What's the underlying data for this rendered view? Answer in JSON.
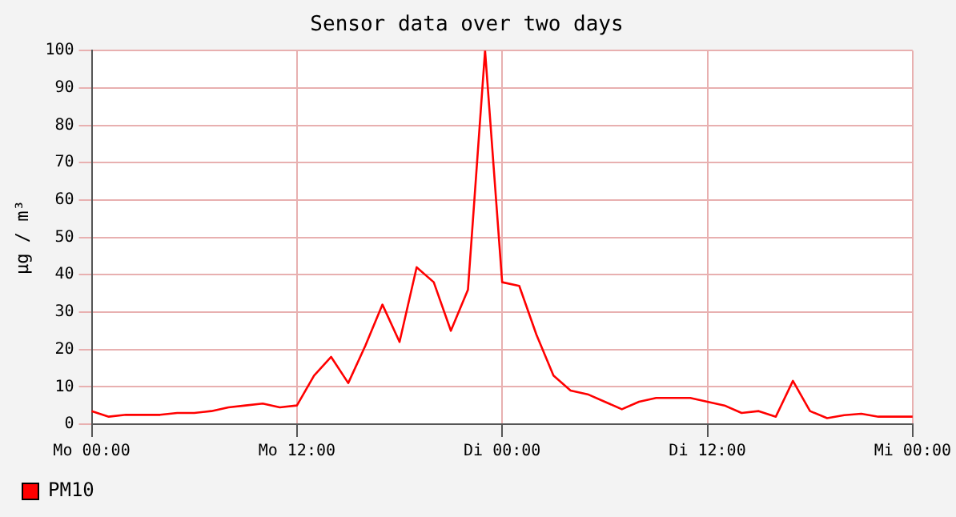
{
  "chart_data": {
    "type": "line",
    "title": "Sensor data over two days",
    "ylabel": "µg / m³",
    "categories": [
      "Mo 00:00",
      null,
      null,
      null,
      null,
      null,
      null,
      null,
      null,
      null,
      null,
      null,
      "Mo 12:00",
      null,
      null,
      null,
      null,
      null,
      null,
      null,
      null,
      null,
      null,
      null,
      "Di 00:00",
      null,
      null,
      null,
      null,
      null,
      null,
      null,
      null,
      null,
      null,
      null,
      "Di 12:00",
      null,
      null,
      null,
      null,
      null,
      null,
      null,
      null,
      null,
      null,
      null,
      "Mi 00:00"
    ],
    "series": [
      {
        "name": "PM10",
        "color": "#ff0000",
        "values": [
          3.5,
          2,
          2.5,
          2.5,
          2.5,
          3,
          3,
          3.5,
          4.5,
          5,
          5.5,
          4.5,
          5,
          13,
          18,
          11,
          21,
          32,
          22,
          42,
          38,
          25,
          36,
          100,
          38,
          37,
          24,
          13,
          9,
          8,
          6,
          4,
          6,
          7,
          7,
          7,
          6,
          5,
          3,
          3.5,
          2,
          11.6,
          3.5,
          1.6,
          2.4,
          2.8,
          2,
          2,
          2
        ]
      }
    ],
    "ylim": [
      0,
      100
    ],
    "yticks": [
      0,
      10,
      20,
      30,
      40,
      50,
      60,
      70,
      80,
      90,
      100
    ],
    "grid": true,
    "legend": "bottom left",
    "marker": "none",
    "line_style": "solid"
  }
}
